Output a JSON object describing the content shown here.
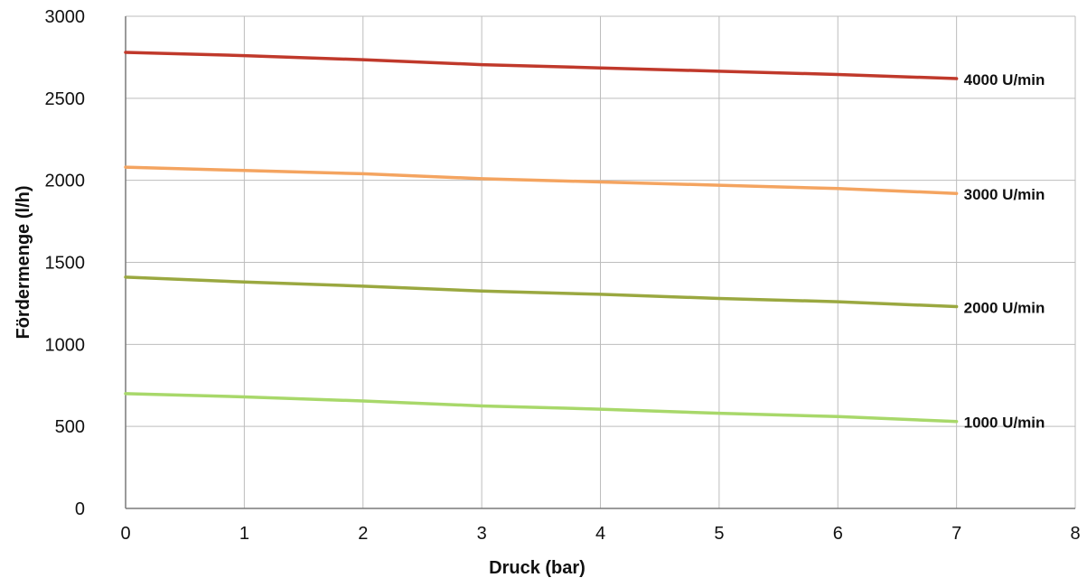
{
  "chart_data": {
    "type": "line",
    "title": "",
    "xlabel": "Druck (bar)",
    "ylabel": "Fördermenge (l/h)",
    "xlim": [
      0,
      8
    ],
    "ylim": [
      0,
      3000
    ],
    "x_ticks": [
      "0",
      "1",
      "2",
      "3",
      "4",
      "5",
      "6",
      "7",
      "8"
    ],
    "y_ticks": [
      "0",
      "500",
      "1000",
      "1500",
      "2000",
      "2500",
      "3000"
    ],
    "grid": true,
    "legend": "none",
    "series_label_position": "right end of each line",
    "x": [
      0,
      1,
      2,
      3,
      4,
      5,
      6,
      7
    ],
    "series": [
      {
        "name": "4000 U/min",
        "color": "#c0392b",
        "values": [
          2780,
          2760,
          2735,
          2705,
          2685,
          2665,
          2645,
          2620
        ]
      },
      {
        "name": "3000 U/min",
        "color": "#f4a460",
        "values": [
          2080,
          2060,
          2040,
          2010,
          1990,
          1970,
          1950,
          1920
        ]
      },
      {
        "name": "2000 U/min",
        "color": "#9aa840",
        "values": [
          1410,
          1380,
          1355,
          1325,
          1305,
          1280,
          1260,
          1230
        ]
      },
      {
        "name": "1000 U/min",
        "color": "#a8d86a",
        "values": [
          700,
          680,
          655,
          625,
          605,
          580,
          560,
          530
        ]
      }
    ],
    "colors": {
      "grid": "#bdbdbd",
      "axis": "#7a7a7a",
      "text": "#111111"
    }
  }
}
